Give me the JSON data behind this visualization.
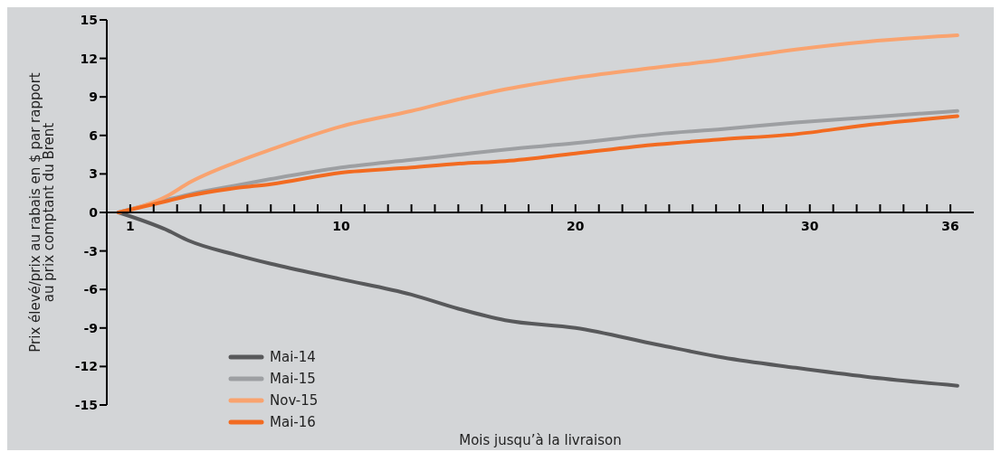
{
  "chart_data": {
    "type": "line",
    "xlabel": "Mois jusqu’à la livraison",
    "ylabel": "Prix élevé/prix au rabais en $ par rapport au prix comptant du Brent",
    "x": [
      0.5,
      2.6,
      3.5,
      5.5,
      7,
      10,
      13,
      15,
      17,
      20,
      23.5,
      26.3,
      29.4,
      32.4,
      36.3
    ],
    "series": [
      {
        "name": "Mai-14",
        "color": "#58595b",
        "values": [
          0,
          -1.4,
          -2.2,
          -3.3,
          -4.0,
          -5.2,
          -6.4,
          -7.5,
          -8.4,
          -9.0,
          -10.3,
          -11.3,
          -12.1,
          -12.8,
          -13.5
        ]
      },
      {
        "name": "Mai-15",
        "color": "#9d9fa2",
        "values": [
          0,
          1.0,
          1.4,
          2.1,
          2.6,
          3.5,
          4.1,
          4.5,
          4.9,
          5.4,
          6.1,
          6.5,
          7.0,
          7.4,
          7.9
        ]
      },
      {
        "name": "Nov-15",
        "color": "#f9a36f",
        "values": [
          0,
          1.3,
          2.3,
          3.9,
          4.9,
          6.7,
          7.9,
          8.8,
          9.6,
          10.5,
          11.3,
          11.9,
          12.7,
          13.3,
          13.8
        ]
      },
      {
        "name": "Mai-16",
        "color": "#f26b21",
        "values": [
          0,
          0.9,
          1.3,
          1.9,
          2.2,
          3.1,
          3.5,
          3.8,
          4.0,
          4.6,
          5.3,
          5.7,
          6.1,
          6.8,
          7.5
        ]
      }
    ],
    "xlim": [
      0,
      37
    ],
    "xticks": [
      1,
      {
        "value": 2,
        "label": null
      },
      {
        "value": 3,
        "label": null
      },
      {
        "value": 4,
        "label": null
      },
      {
        "value": 5,
        "label": null
      },
      {
        "value": 6,
        "label": null
      },
      {
        "value": 7,
        "label": null
      },
      {
        "value": 8,
        "label": null
      },
      {
        "value": 9,
        "label": null
      },
      10,
      {
        "value": 11,
        "label": null
      },
      {
        "value": 12,
        "label": null
      },
      {
        "value": 13,
        "label": null
      },
      {
        "value": 14,
        "label": null
      },
      {
        "value": 15,
        "label": null
      },
      {
        "value": 16,
        "label": null
      },
      {
        "value": 17,
        "label": null
      },
      {
        "value": 18,
        "label": null
      },
      {
        "value": 19,
        "label": null
      },
      20,
      {
        "value": 21,
        "label": null
      },
      {
        "value": 22,
        "label": null
      },
      {
        "value": 23,
        "label": null
      },
      {
        "value": 24,
        "label": null
      },
      {
        "value": 25,
        "label": null
      },
      {
        "value": 26,
        "label": null
      },
      {
        "value": 27,
        "label": null
      },
      {
        "value": 28,
        "label": null
      },
      {
        "value": 29,
        "label": null
      },
      30,
      {
        "value": 31,
        "label": null
      },
      {
        "value": 32,
        "label": null
      },
      {
        "value": 33,
        "label": null
      },
      {
        "value": 34,
        "label": null
      },
      {
        "value": 35,
        "label": null
      },
      36
    ],
    "ylim": [
      -15,
      15
    ],
    "yticks": [
      -15,
      -12,
      -9,
      -6,
      -3,
      0,
      3,
      6,
      9,
      12,
      15
    ],
    "grid": false,
    "legend": "bottom left",
    "marker": "none",
    "line_style": "solid"
  }
}
